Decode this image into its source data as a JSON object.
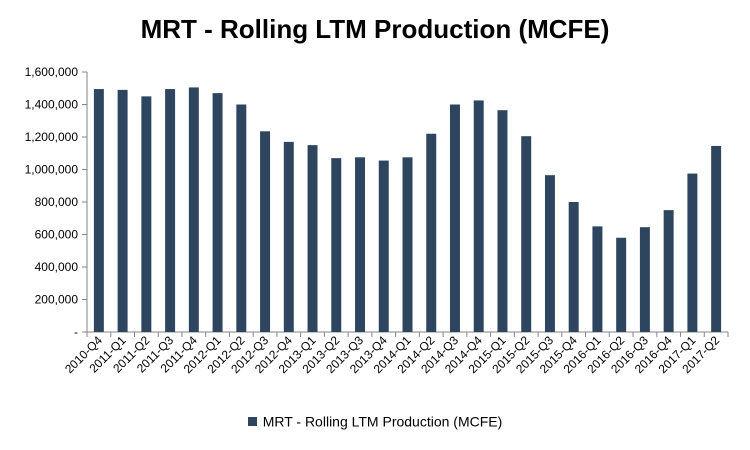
{
  "chart_data": {
    "type": "bar",
    "title": "MRT - Rolling LTM Production (MCFE)",
    "xlabel": "",
    "ylabel": "",
    "categories": [
      "2010-Q4",
      "2011-Q1",
      "2011-Q2",
      "2011-Q3",
      "2011-Q4",
      "2012-Q1",
      "2012-Q2",
      "2012-Q3",
      "2012-Q4",
      "2013-Q1",
      "2013-Q2",
      "2013-Q3",
      "2013-Q4",
      "2014-Q1",
      "2014-Q2",
      "2014-Q3",
      "2014-Q4",
      "2015-Q1",
      "2015-Q2",
      "2015-Q3",
      "2015-Q4",
      "2016-Q1",
      "2016-Q2",
      "2016-Q3",
      "2016-Q4",
      "2017-Q1",
      "2017-Q2"
    ],
    "series": [
      {
        "name": "MRT - Rolling LTM Production (MCFE)",
        "color": "#2e4560",
        "values": [
          1495000,
          1490000,
          1450000,
          1495000,
          1505000,
          1470000,
          1400000,
          1235000,
          1170000,
          1150000,
          1070000,
          1075000,
          1055000,
          1075000,
          1220000,
          1400000,
          1425000,
          1365000,
          1205000,
          965000,
          800000,
          650000,
          580000,
          645000,
          750000,
          975000,
          1145000
        ]
      }
    ],
    "ylim": [
      0,
      1600000
    ],
    "yticks": [
      0,
      200000,
      400000,
      600000,
      800000,
      1000000,
      1200000,
      1400000,
      1600000
    ],
    "ytick_labels": [
      "-",
      "200,000",
      "400,000",
      "600,000",
      "800,000",
      "1,000,000",
      "1,200,000",
      "1,400,000",
      "1,600,000"
    ],
    "legend_position": "bottom",
    "grid": false
  }
}
